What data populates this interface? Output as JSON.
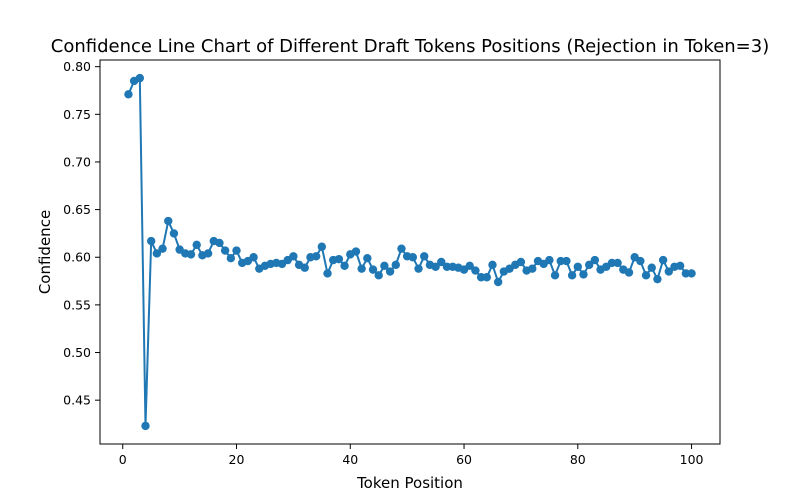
{
  "chart_data": {
    "type": "line",
    "title": "Confidence Line Chart of Different Draft Tokens Positions (Rejection in Token=3)",
    "xlabel": "Token Position",
    "ylabel": "Confidence",
    "xlim": [
      -4,
      105
    ],
    "ylim": [
      0.404,
      0.807
    ],
    "xticks": [
      0,
      20,
      40,
      60,
      80,
      100
    ],
    "xtick_labels": [
      "0",
      "20",
      "40",
      "60",
      "80",
      "100"
    ],
    "yticks": [
      0.45,
      0.5,
      0.55,
      0.6,
      0.65,
      0.7,
      0.75,
      0.8
    ],
    "ytick_labels": [
      "0.45",
      "0.50",
      "0.55",
      "0.60",
      "0.65",
      "0.70",
      "0.75",
      "0.80"
    ],
    "grid": false,
    "series_color": "#1f77b4",
    "x": [
      1,
      2,
      3,
      4,
      5,
      6,
      7,
      8,
      9,
      10,
      11,
      12,
      13,
      14,
      15,
      16,
      17,
      18,
      19,
      20,
      21,
      22,
      23,
      24,
      25,
      26,
      27,
      28,
      29,
      30,
      31,
      32,
      33,
      34,
      35,
      36,
      37,
      38,
      39,
      40,
      41,
      42,
      43,
      44,
      45,
      46,
      47,
      48,
      49,
      50,
      51,
      52,
      53,
      54,
      55,
      56,
      57,
      58,
      59,
      60,
      61,
      62,
      63,
      64,
      65,
      66,
      67,
      68,
      69,
      70,
      71,
      72,
      73,
      74,
      75,
      76,
      77,
      78,
      79,
      80,
      81,
      82,
      83,
      84,
      85,
      86,
      87,
      88,
      89,
      90,
      91,
      92,
      93,
      94,
      95,
      96,
      97,
      98,
      99,
      100
    ],
    "y": [
      0.771,
      0.785,
      0.788,
      0.423,
      0.617,
      0.604,
      0.609,
      0.638,
      0.625,
      0.608,
      0.604,
      0.603,
      0.613,
      0.602,
      0.604,
      0.617,
      0.615,
      0.607,
      0.599,
      0.607,
      0.594,
      0.596,
      0.6,
      0.588,
      0.591,
      0.593,
      0.594,
      0.593,
      0.597,
      0.601,
      0.592,
      0.589,
      0.6,
      0.601,
      0.611,
      0.583,
      0.597,
      0.598,
      0.591,
      0.603,
      0.606,
      0.588,
      0.599,
      0.587,
      0.581,
      0.591,
      0.585,
      0.592,
      0.609,
      0.601,
      0.6,
      0.588,
      0.601,
      0.592,
      0.59,
      0.595,
      0.59,
      0.59,
      0.589,
      0.587,
      0.591,
      0.586,
      0.579,
      0.579,
      0.592,
      0.574,
      0.585,
      0.588,
      0.592,
      0.595,
      0.586,
      0.588,
      0.596,
      0.593,
      0.597,
      0.581,
      0.596,
      0.596,
      0.581,
      0.59,
      0.582,
      0.592,
      0.597,
      0.587,
      0.59,
      0.594,
      0.594,
      0.587,
      0.584,
      0.6,
      0.596,
      0.581,
      0.589,
      0.577,
      0.597,
      0.585,
      0.59,
      0.591,
      0.583,
      0.583
    ]
  }
}
